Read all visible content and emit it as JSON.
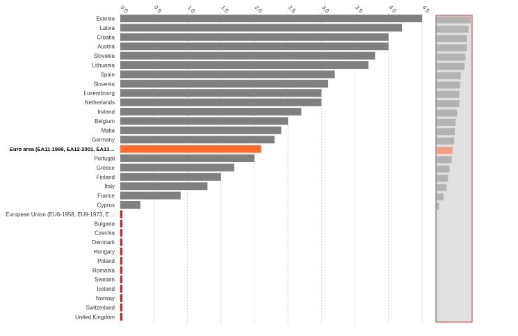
{
  "chart_data": {
    "type": "bar",
    "orientation": "horizontal",
    "xlim": [
      0,
      4.5
    ],
    "grid": true,
    "ticks": [
      "0.0",
      "0.5",
      "1.0",
      "1.5",
      "2.0",
      "2.5",
      "3.0",
      "3.5",
      "4.0",
      "4.5"
    ],
    "categories": [
      "Estonia",
      "Latvia",
      "Croatia",
      "Austria",
      "Slovakia",
      "Lithuania",
      "Spain",
      "Slovenia",
      "Luxembourg",
      "Netherlands",
      "Ireland",
      "Belgium",
      "Malta",
      "Germany",
      "Euro area (EA11-1999, EA12-2001, EA13…",
      "Portugal",
      "Greece",
      "Finland",
      "Italy",
      "France",
      "Cyprus",
      "European Union (EU6-1958, EU9-1973, E…",
      "Bulgaria",
      "Czechia",
      "Denmark",
      "Hungary",
      "Poland",
      "Romania",
      "Sweden",
      "Iceland",
      "Norway",
      "Switzerland",
      "United Kingdom"
    ],
    "values": [
      4.5,
      4.2,
      4.0,
      4.0,
      3.8,
      3.7,
      3.2,
      3.1,
      3.0,
      3.0,
      2.7,
      2.5,
      2.4,
      2.3,
      2.1,
      2.0,
      1.7,
      1.5,
      1.3,
      0.9,
      0.3,
      0.0,
      0.0,
      0.0,
      0.0,
      0.0,
      0.0,
      0.0,
      0.0,
      0.0,
      0.0,
      0.0,
      0.0
    ],
    "highlight_index": 14,
    "colors": {
      "bar": "#808080",
      "highlight": "#ff6a2a",
      "zero_marker": "#e8141a",
      "overview_bar": "#b3b3b3",
      "overview_highlight": "#f0a080",
      "overview_bg": "#e0e0e0",
      "overview_border": "#cc3333",
      "grid": "#cfcfcf"
    }
  }
}
